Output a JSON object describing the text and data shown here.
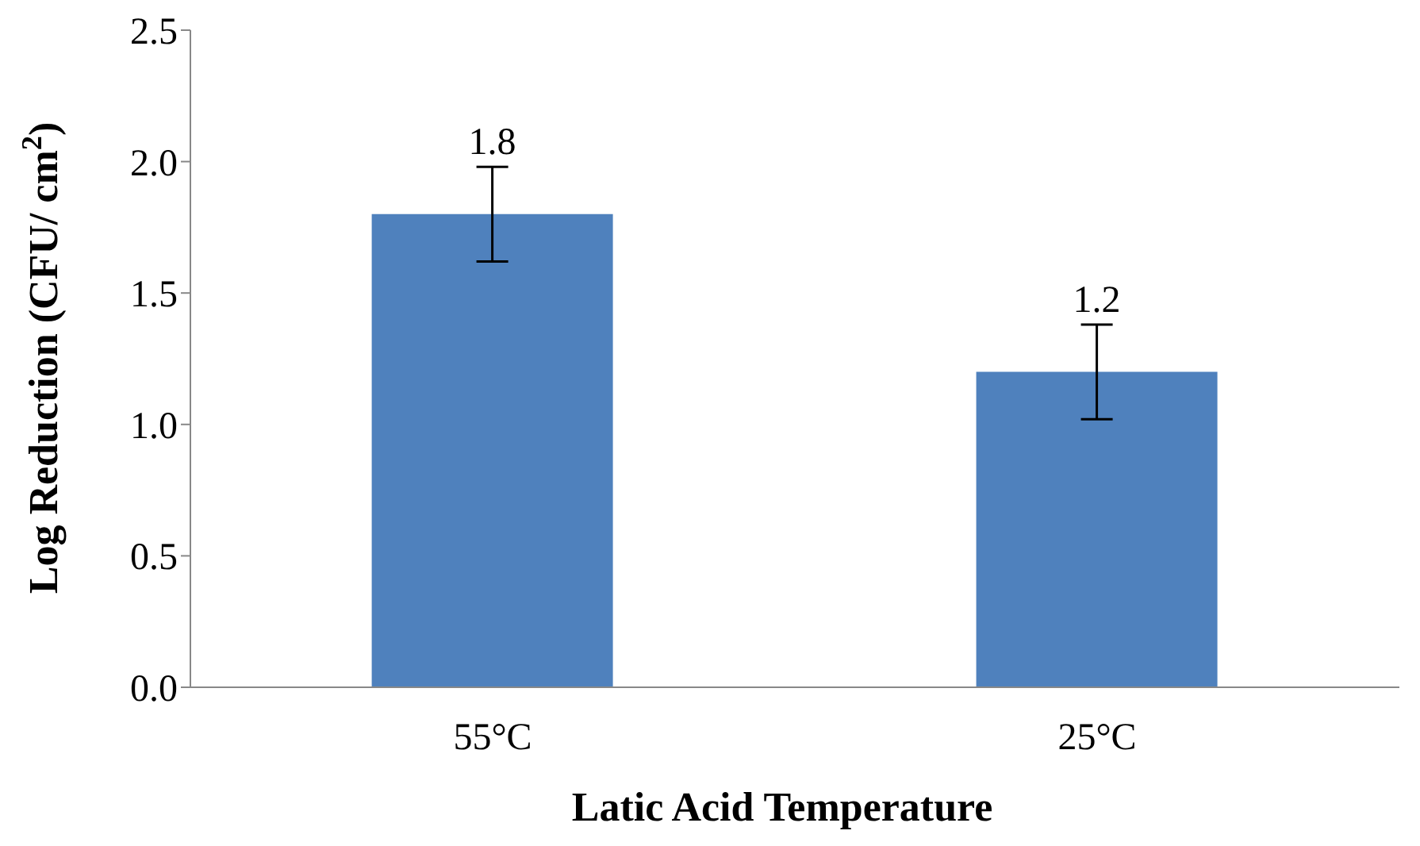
{
  "chart_data": {
    "type": "bar",
    "xlabel": "Latic Acid Temperature",
    "ylabel": "Log Reduction (CFU/ cm$^{2}$)",
    "categories": [
      "55°C",
      "25°C"
    ],
    "values": [
      1.8,
      1.2
    ],
    "errors": [
      0.18,
      0.18
    ],
    "color": "#4f81bd",
    "ylim": [
      0,
      2.5
    ],
    "yticks": [
      {
        "value": 0,
        "label": "0.0"
      },
      0.5,
      {
        "value": 1,
        "label": "1.0"
      },
      1.5,
      {
        "value": 2,
        "label": "2.0"
      },
      2.5
    ],
    "data_labels": true,
    "grid": false,
    "legend": false
  }
}
